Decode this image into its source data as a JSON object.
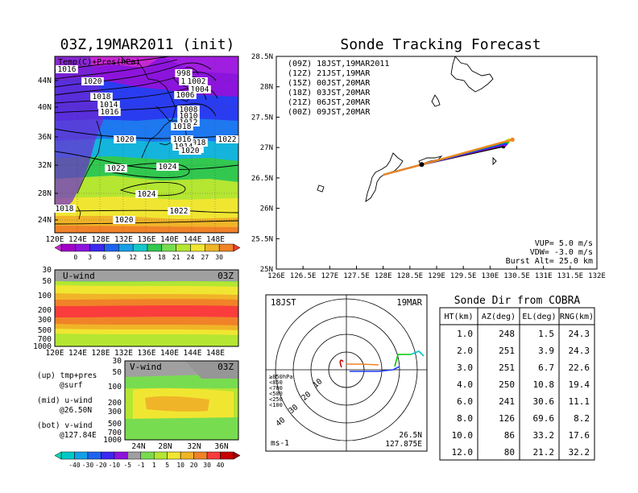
{
  "titles": {
    "left": "03Z,19MAR2011 (init)",
    "right": "Sonde Tracking Forecast"
  },
  "colors": {
    "purple": "#a000c8",
    "blue": "#1e3cff",
    "cyan": "#00c8c8",
    "green": "#00dc00",
    "yellow": "#e6dc32",
    "orange": "#f08228",
    "red": "#fa3c3c",
    "magenta": "#f000f0",
    "darkred": "#c80000",
    "gray": "#a0a0a0"
  },
  "chart_data": [
    {
      "type": "heatmap",
      "panel": "map",
      "label": "Temp(C)+Pres(hPa)",
      "x_ticks": [
        "120E",
        "124E",
        "128E",
        "132E",
        "136E",
        "140E",
        "144E",
        "148E"
      ],
      "y_ticks": [
        "24N",
        "28N",
        "32N",
        "36N",
        "40N",
        "44N"
      ],
      "isobar_labels": [
        "1016",
        "1020",
        "1018",
        "1014",
        "1016",
        "1020",
        "1022",
        "1024",
        "1024",
        "1022",
        "1020",
        "1018",
        "1020",
        "1018",
        "1016",
        "998",
        "1000",
        "1002",
        "1004",
        "1006",
        "1008",
        "1010",
        "1012",
        "1014",
        "1018",
        "1020",
        "1022"
      ],
      "colorbar_ticks": [
        "0",
        "3",
        "6",
        "9",
        "12",
        "15",
        "18",
        "21",
        "24",
        "27",
        "30"
      ]
    },
    {
      "type": "heatmap",
      "panel": "u-wind",
      "label": "U-wind",
      "time": "03Z",
      "x_ticks": [
        "120E",
        "124E",
        "128E",
        "132E",
        "136E",
        "140E",
        "144E",
        "148E"
      ],
      "y_ticks": [
        "30",
        "50",
        "100",
        "200",
        "300",
        "500",
        "700",
        "1000"
      ]
    },
    {
      "type": "heatmap",
      "panel": "v-wind",
      "label": "V-wind",
      "time": "03Z",
      "x_ticks": [
        "24N",
        "28N",
        "32N",
        "36N"
      ],
      "y_ticks": [
        "30",
        "50",
        "100",
        "200",
        "300",
        "500",
        "700",
        "1000"
      ],
      "colorbar_ticks": [
        "-40",
        "-30",
        "-20",
        "-10",
        "-5",
        "-1",
        "1",
        "5",
        "10",
        "20",
        "30",
        "40"
      ]
    },
    {
      "type": "line",
      "panel": "tracking",
      "title": "Sonde Tracking Forecast",
      "x_ticks": [
        "126E",
        "126.5E",
        "127E",
        "127.5E",
        "128E",
        "128.5E",
        "129E",
        "129.5E",
        "130E",
        "130.5E",
        "131E",
        "131.5E",
        "132E"
      ],
      "y_ticks": [
        "25N",
        "25.5N",
        "26N",
        "26.5N",
        "27N",
        "27.5N",
        "28N",
        "28.5N"
      ],
      "xlim": [
        126,
        132
      ],
      "ylim": [
        25,
        28.5
      ],
      "launch": {
        "lon": 128.72,
        "lat": 26.72
      },
      "legend": [
        {
          "label": "(09Z)  18JST,19MAR2011",
          "color": "#000000",
          "end": [
            130.25,
            27.02
          ]
        },
        {
          "label": "(12Z)  21JST,19MAR",
          "color": "#a000c8",
          "end": [
            130.28,
            27.05
          ]
        },
        {
          "label": "(15Z)  00JST,20MAR",
          "color": "#1e3cff",
          "end": [
            130.3,
            27.07
          ]
        },
        {
          "label": "(18Z)  03JST,20MAR",
          "color": "#00c800",
          "end": [
            130.33,
            27.1
          ]
        },
        {
          "label": "(21Z)  06JST,20MAR",
          "color": "#e6dc32",
          "end": [
            130.36,
            27.12
          ]
        },
        {
          "label": "(00Z)  09JST,20MAR",
          "color": "#f08228",
          "end": [
            130.42,
            27.13
          ]
        }
      ],
      "info": [
        "VUP=  5.0  m/s",
        "VDW=  -3.0  m/s",
        "Burst Alt=  25.0  km"
      ]
    },
    {
      "type": "scatter",
      "panel": "hodograph",
      "label_left": "18JST",
      "label_right": "19MAR",
      "ring_labels": [
        "10",
        "20",
        "30",
        "40"
      ],
      "unit": "ms-1",
      "location": [
        "26.5N",
        "127.875E"
      ],
      "legend": [
        "≥850hPa",
        "<850",
        "<700",
        "<500",
        "<250",
        "<100"
      ]
    },
    {
      "type": "table",
      "panel": "sonde-dir",
      "title": "Sonde Dir from COBRA",
      "columns": [
        "HT(km)",
        "AZ(deg)",
        "EL(deg)",
        "RNG(km)"
      ],
      "rows": [
        [
          "1.0",
          "248",
          "1.5",
          "24.3"
        ],
        [
          "2.0",
          "251",
          "3.9",
          "24.3"
        ],
        [
          "3.0",
          "251",
          "6.7",
          "22.6"
        ],
        [
          "4.0",
          "250",
          "10.8",
          "19.4"
        ],
        [
          "6.0",
          "241",
          "30.6",
          "11.1"
        ],
        [
          "8.0",
          "126",
          "69.6",
          "8.2"
        ],
        [
          "10.0",
          "86",
          "33.2",
          "17.6"
        ],
        [
          "12.0",
          "80",
          "21.2",
          "32.2"
        ]
      ]
    }
  ],
  "notes": {
    "up": "(up) tmp+pres",
    "up2": "@surf",
    "mid": "(mid) u-wind",
    "mid2": "@26.50N",
    "bot": "(bot) v-wind",
    "bot2": "@127.84E"
  }
}
